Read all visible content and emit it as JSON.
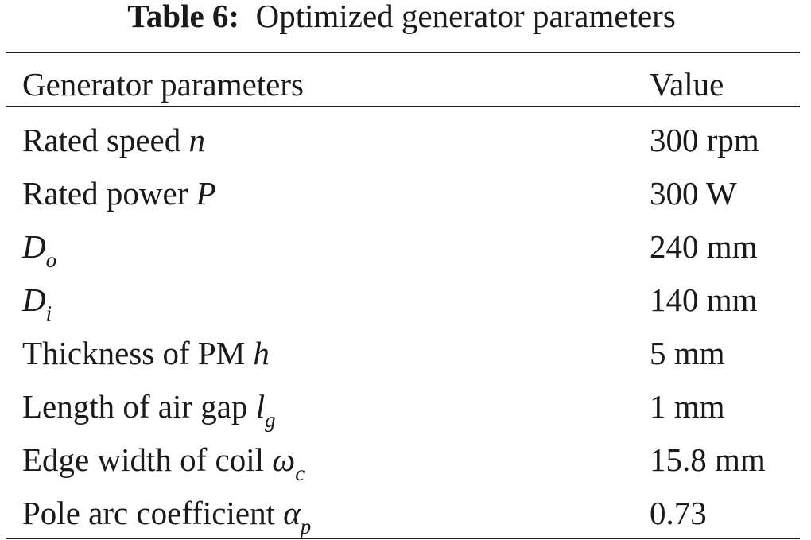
{
  "caption": {
    "label": "Table 6:",
    "text": "Optimized generator parameters"
  },
  "header": {
    "col1": "Generator parameters",
    "col2": "Value"
  },
  "rows": [
    {
      "param": "Rated speed",
      "symbol": "n",
      "subscript": "",
      "value": "300 rpm"
    },
    {
      "param": "Rated power",
      "symbol": "P",
      "subscript": "",
      "value": "300 W"
    },
    {
      "param": "",
      "symbol": "D",
      "subscript": "o",
      "value": "240 mm"
    },
    {
      "param": "",
      "symbol": "D",
      "subscript": "i",
      "value": "140 mm"
    },
    {
      "param": "Thickness of PM",
      "symbol": "h",
      "subscript": "",
      "value": "5 mm"
    },
    {
      "param": "Length of air gap",
      "symbol": "l",
      "subscript": "g",
      "value": "1 mm"
    },
    {
      "param": "Edge width of coil",
      "symbol": "ω",
      "subscript": "c",
      "value": "15.8 mm"
    },
    {
      "param": "Pole arc coefficient",
      "symbol": "α",
      "subscript": "p",
      "value": "0.73"
    }
  ]
}
